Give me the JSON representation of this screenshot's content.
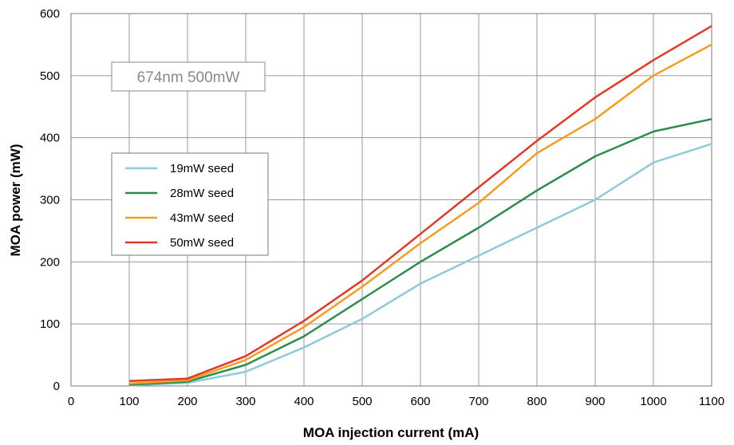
{
  "chart_data": {
    "type": "line",
    "title": "",
    "annotation": "674nm 500mW",
    "xlabel": "MOA injection current (mA)",
    "ylabel": "MOA power (mW)",
    "xlim": [
      0,
      1100
    ],
    "ylim": [
      0,
      600
    ],
    "xticks": [
      0,
      100,
      200,
      300,
      400,
      500,
      600,
      700,
      800,
      900,
      1000,
      1100
    ],
    "yticks": [
      0,
      100,
      200,
      300,
      400,
      500,
      600
    ],
    "grid": true,
    "legend_position": "middle-left",
    "x": [
      100,
      200,
      300,
      400,
      500,
      600,
      700,
      800,
      900,
      1000,
      1100
    ],
    "series": [
      {
        "name": "19mW seed",
        "color": "#8ecad8",
        "values": [
          1,
          5,
          23,
          62,
          108,
          165,
          210,
          255,
          300,
          360,
          390
        ]
      },
      {
        "name": "28mW seed",
        "color": "#2e8b4f",
        "values": [
          2,
          7,
          34,
          80,
          140,
          200,
          255,
          315,
          370,
          410,
          430
        ]
      },
      {
        "name": "43mW seed",
        "color": "#f39c1f",
        "values": [
          4,
          9,
          42,
          95,
          160,
          230,
          295,
          375,
          430,
          500,
          550
        ]
      },
      {
        "name": "50mW seed",
        "color": "#e23a26",
        "values": [
          8,
          12,
          48,
          105,
          170,
          245,
          320,
          395,
          465,
          525,
          580
        ]
      }
    ]
  }
}
